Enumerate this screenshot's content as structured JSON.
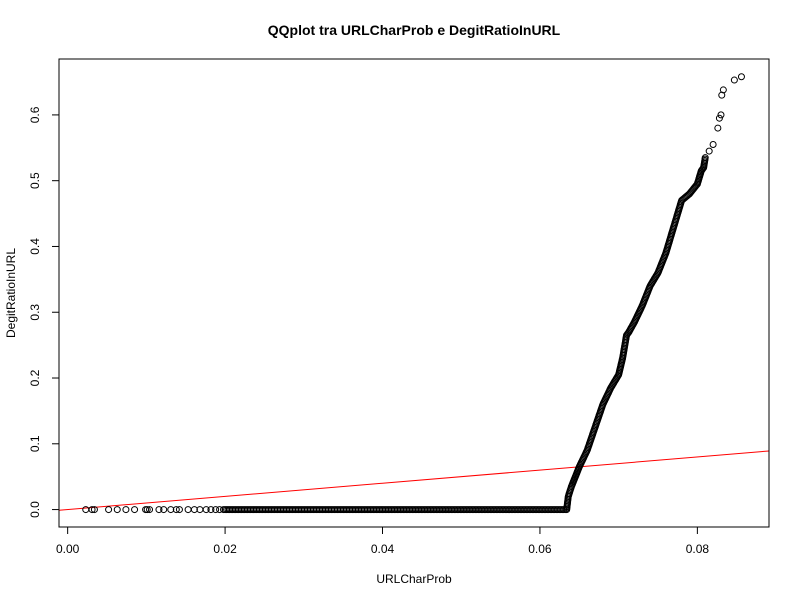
{
  "chart_data": {
    "type": "scatter",
    "title": "QQplot tra URLCharProb e DegitRatioInURL",
    "xlabel": "URLCharProb",
    "ylabel": "DegitRatioInURL",
    "xlim": [
      -0.0011,
      0.0891
    ],
    "ylim": [
      -0.0265,
      0.685
    ],
    "x_ticks": [
      0.0,
      0.02,
      0.04,
      0.06,
      0.08
    ],
    "x_tick_labels": [
      "0.00",
      "0.02",
      "0.04",
      "0.06",
      "0.08"
    ],
    "y_ticks": [
      0.0,
      0.1,
      0.2,
      0.3,
      0.4,
      0.5,
      0.6
    ],
    "y_tick_labels": [
      "0.0",
      "0.1",
      "0.2",
      "0.3",
      "0.4",
      "0.5",
      "0.6"
    ],
    "grid": false,
    "point_color": "#000000",
    "reference_line": {
      "intercept": 0,
      "slope": 1,
      "color": "#ff0000"
    },
    "sparse_points": [
      [
        0.0023,
        0.0
      ],
      [
        0.0031,
        0.0
      ],
      [
        0.0034,
        0.0
      ],
      [
        0.0052,
        0.0
      ],
      [
        0.0063,
        0.0
      ],
      [
        0.0074,
        0.0
      ],
      [
        0.0085,
        0.0
      ],
      [
        0.0099,
        0.0
      ],
      [
        0.0101,
        0.0
      ],
      [
        0.0104,
        0.0
      ],
      [
        0.0116,
        0.0
      ],
      [
        0.0122,
        0.0
      ],
      [
        0.0131,
        0.0
      ],
      [
        0.0138,
        0.0
      ],
      [
        0.0142,
        0.0
      ],
      [
        0.0153,
        0.0
      ],
      [
        0.0161,
        0.0
      ],
      [
        0.0168,
        0.0
      ],
      [
        0.0176,
        0.0
      ],
      [
        0.0182,
        0.0
      ],
      [
        0.0188,
        0.0
      ],
      [
        0.0193,
        0.0
      ],
      [
        0.0198,
        0.0
      ]
    ],
    "dense_curve": [
      [
        0.02,
        0.0
      ],
      [
        0.0634,
        0.0
      ],
      [
        0.0636,
        0.02
      ],
      [
        0.064,
        0.035
      ],
      [
        0.0645,
        0.05
      ],
      [
        0.065,
        0.065
      ],
      [
        0.066,
        0.09
      ],
      [
        0.067,
        0.125
      ],
      [
        0.068,
        0.16
      ],
      [
        0.069,
        0.185
      ],
      [
        0.07,
        0.205
      ],
      [
        0.0705,
        0.23
      ],
      [
        0.071,
        0.265
      ],
      [
        0.0713,
        0.27
      ],
      [
        0.072,
        0.285
      ],
      [
        0.073,
        0.31
      ],
      [
        0.074,
        0.34
      ],
      [
        0.075,
        0.36
      ],
      [
        0.076,
        0.39
      ],
      [
        0.077,
        0.43
      ],
      [
        0.078,
        0.47
      ],
      [
        0.079,
        0.48
      ],
      [
        0.08,
        0.495
      ],
      [
        0.0805,
        0.515
      ],
      [
        0.0808,
        0.52
      ],
      [
        0.081,
        0.535
      ]
    ],
    "tail_points": [
      [
        0.0815,
        0.545
      ],
      [
        0.082,
        0.555
      ],
      [
        0.0826,
        0.58
      ],
      [
        0.0828,
        0.595
      ],
      [
        0.083,
        0.6
      ],
      [
        0.0831,
        0.63
      ],
      [
        0.0833,
        0.638
      ],
      [
        0.0847,
        0.653
      ],
      [
        0.0856,
        0.658
      ]
    ]
  }
}
